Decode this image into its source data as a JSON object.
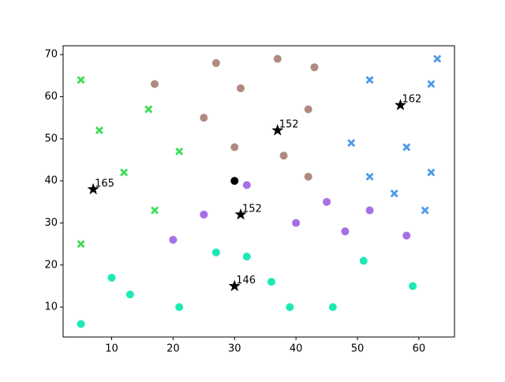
{
  "chart_data": {
    "type": "scatter",
    "xlim": [
      2.1,
      65.8
    ],
    "ylim": [
      2.9,
      72.1
    ],
    "xticks": [
      10,
      20,
      30,
      40,
      50,
      60
    ],
    "yticks": [
      10,
      20,
      30,
      40,
      50,
      60,
      70
    ],
    "series": [
      {
        "marker": "x",
        "color": "#3ddc5a",
        "x": [
          5,
          8,
          16,
          12,
          21,
          17,
          5
        ],
        "values": [
          64,
          52,
          57,
          42,
          47,
          33,
          25
        ]
      },
      {
        "marker": "o",
        "color": "#b08a80",
        "x": [
          27,
          37,
          43,
          17,
          31,
          25,
          42,
          30,
          38,
          42
        ],
        "values": [
          68,
          69,
          67,
          63,
          62,
          55,
          57,
          48,
          46,
          41
        ]
      },
      {
        "marker": "x",
        "color": "#4c9be8",
        "x": [
          63,
          52,
          62,
          49,
          58,
          52,
          62,
          56,
          61
        ],
        "values": [
          69,
          64,
          63,
          49,
          48,
          41,
          42,
          37,
          33
        ]
      },
      {
        "marker": "o",
        "color": "#a66fe8",
        "x": [
          32,
          45,
          25,
          40,
          52,
          20,
          48,
          58
        ],
        "values": [
          39,
          35,
          32,
          30,
          33,
          26,
          28,
          27
        ]
      },
      {
        "marker": "o",
        "color": "#1de9b6",
        "x": [
          27,
          32,
          51,
          10,
          36,
          13,
          59,
          21,
          39,
          46,
          5
        ],
        "values": [
          23,
          22,
          21,
          17,
          16,
          13,
          15,
          10,
          10,
          10,
          6
        ]
      },
      {
        "marker": "o",
        "color": "#000000",
        "x": [
          30
        ],
        "values": [
          40
        ]
      },
      {
        "marker": "*",
        "color": "#000000",
        "x": [
          7,
          37,
          57,
          31,
          30
        ],
        "values": [
          38,
          52,
          58,
          32,
          15
        ],
        "annotations": [
          165,
          152,
          162,
          152,
          146
        ]
      }
    ]
  }
}
